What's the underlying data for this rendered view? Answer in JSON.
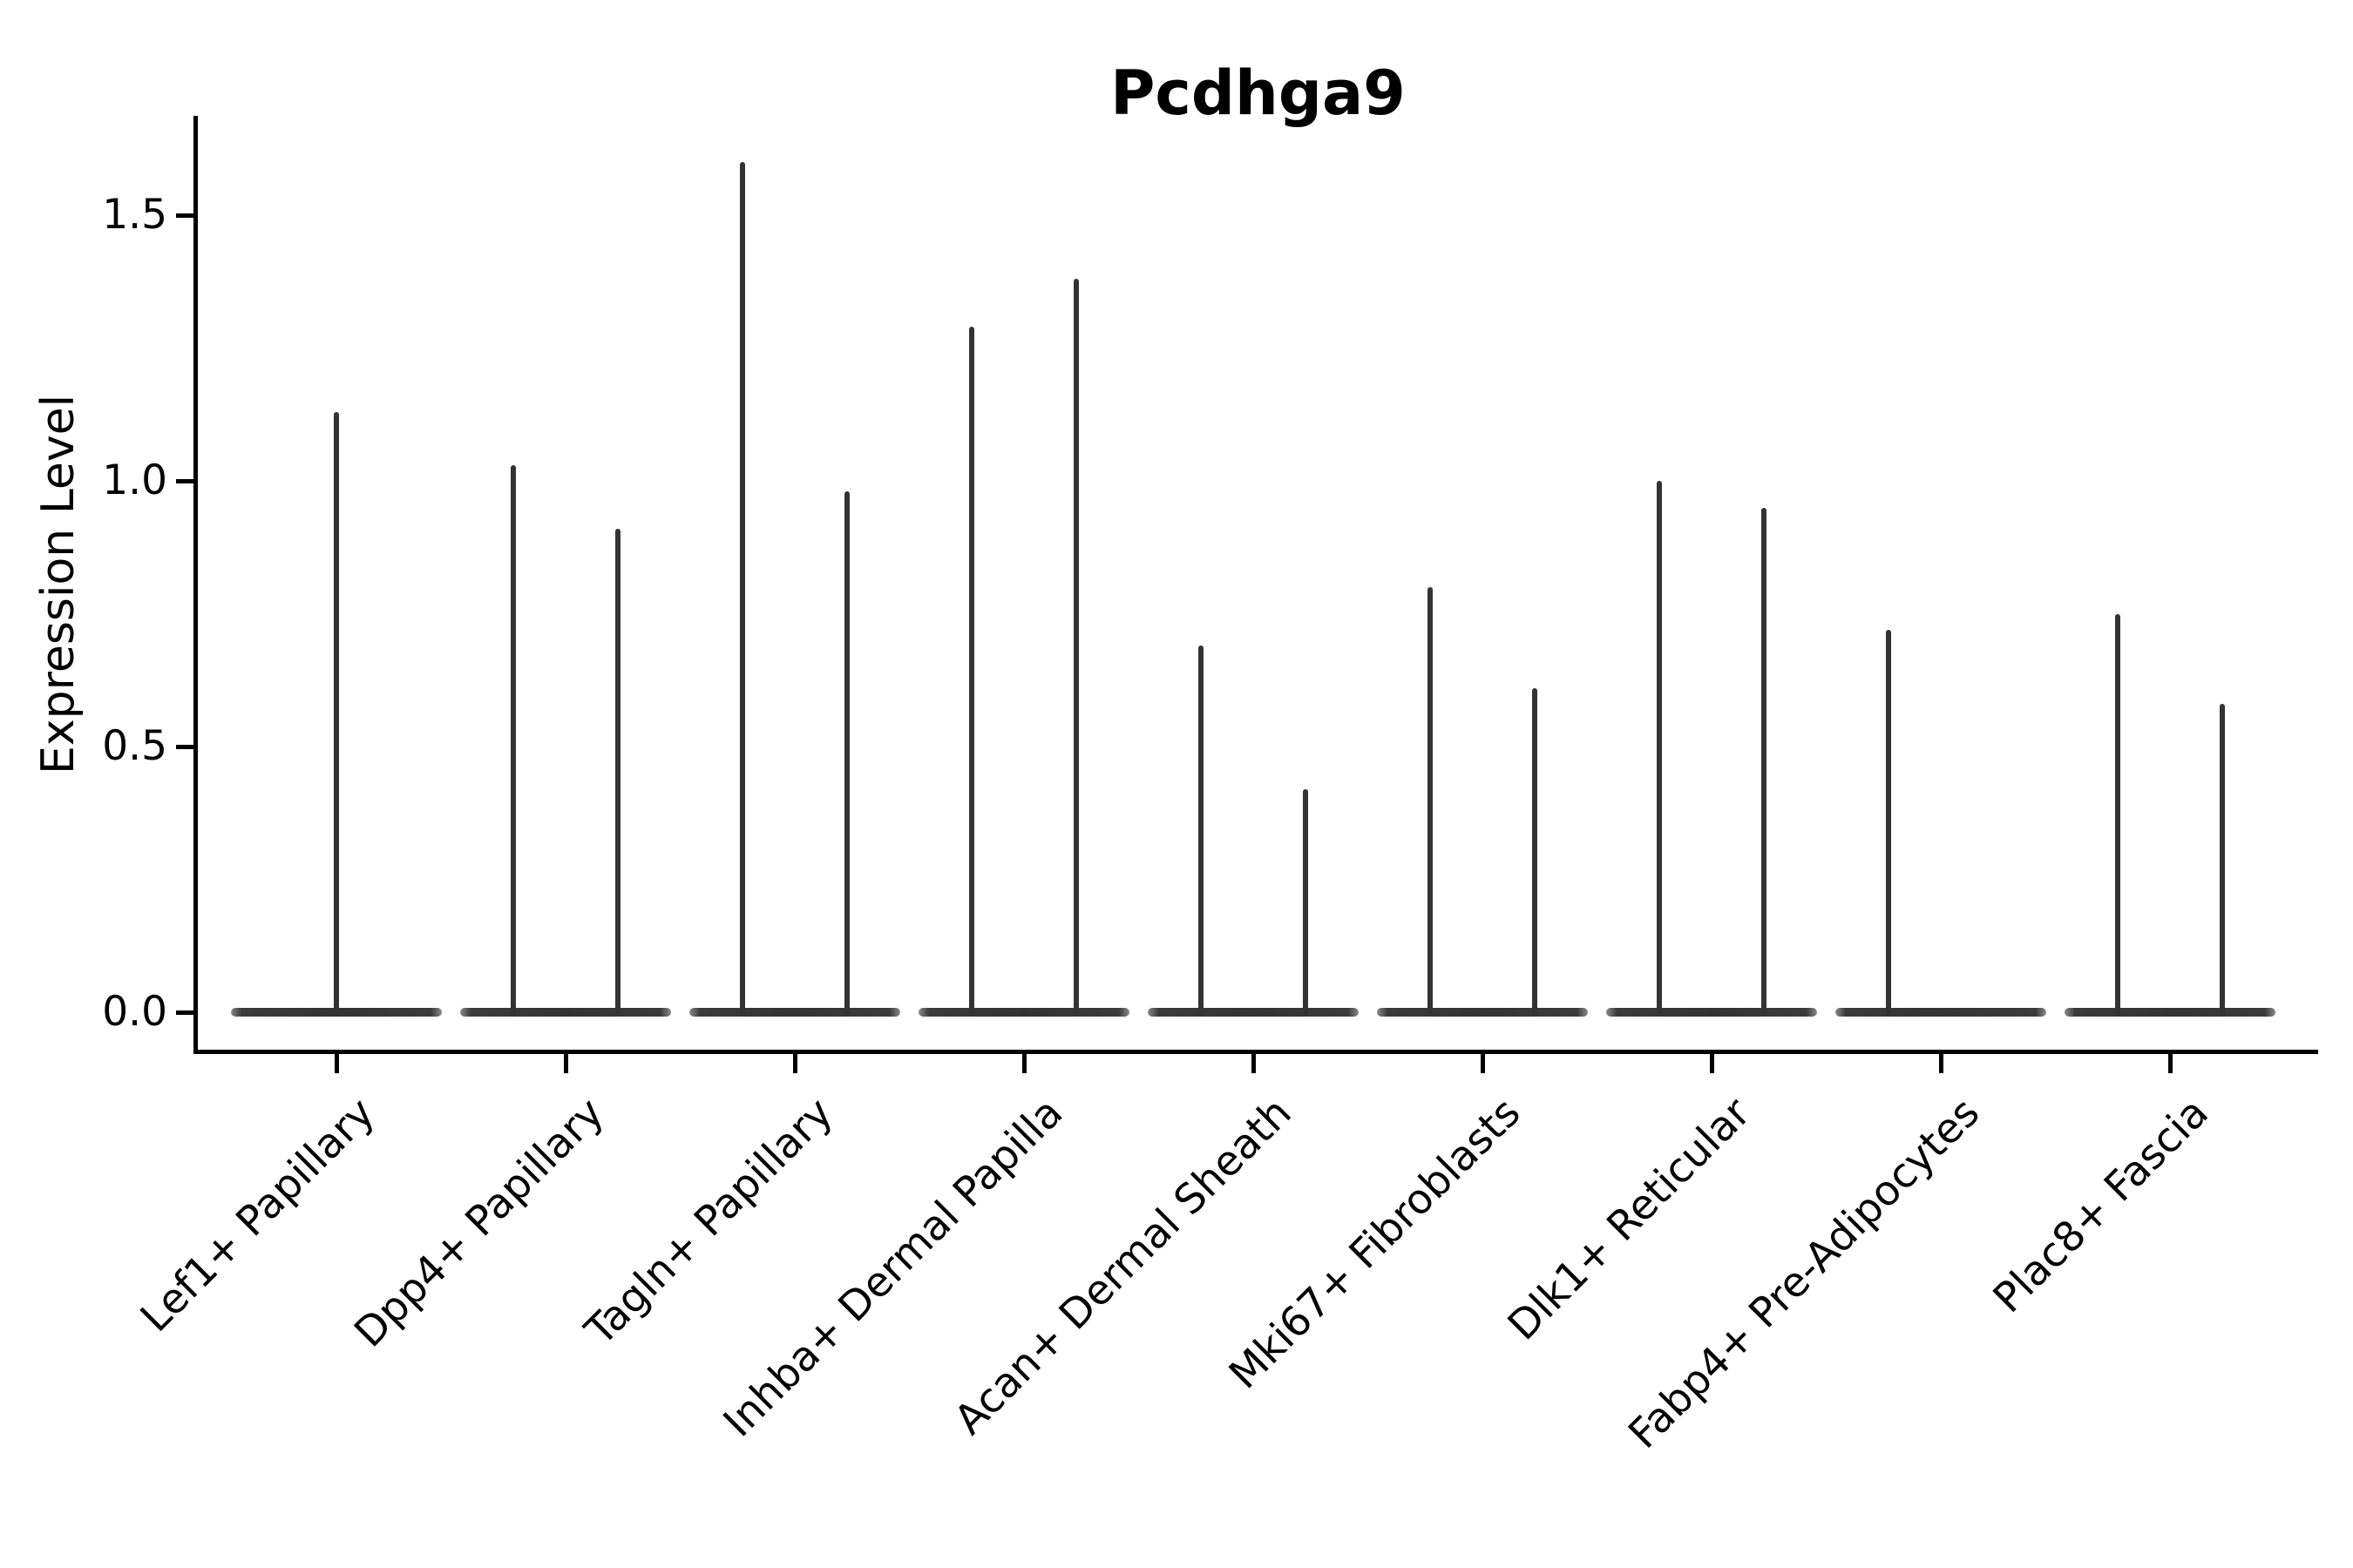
{
  "chart_data": {
    "type": "violin",
    "title": "Pcdhga9",
    "ylabel": "Expression Level",
    "xlabel": "",
    "categories": [
      "Lef1+ Papillary",
      "Dpp4+ Papillary",
      "Tagln+ Papillary",
      "Inhba+ Dermal Papilla",
      "Acan+ Dermal Sheath",
      "Mki67+ Fibroblasts",
      "Dlk1+ Reticular",
      "Fabp4+ Pre-Adipocytes",
      "Plac8+ Fascia"
    ],
    "violins": [
      {
        "label": "Lef1+ Papillary",
        "spikes": [
          {
            "position": "center",
            "value": 1.13
          }
        ]
      },
      {
        "label": "Dpp4+ Papillary",
        "spikes": [
          {
            "position": "left",
            "value": 1.03
          },
          {
            "position": "right",
            "value": 0.91
          }
        ]
      },
      {
        "label": "Tagln+ Papillary",
        "spikes": [
          {
            "position": "left",
            "value": 1.6
          },
          {
            "position": "right",
            "value": 0.98
          }
        ]
      },
      {
        "label": "Inhba+ Dermal Papilla",
        "spikes": [
          {
            "position": "left",
            "value": 1.29
          },
          {
            "position": "right",
            "value": 1.38
          }
        ]
      },
      {
        "label": "Acan+ Dermal Sheath",
        "spikes": [
          {
            "position": "left",
            "value": 0.69
          },
          {
            "position": "right",
            "value": 0.42
          }
        ]
      },
      {
        "label": "Mki67+ Fibroblasts",
        "spikes": [
          {
            "position": "left",
            "value": 0.8
          },
          {
            "position": "right",
            "value": 0.61
          }
        ]
      },
      {
        "label": "Dlk1+ Reticular",
        "spikes": [
          {
            "position": "left",
            "value": 1.0
          },
          {
            "position": "right",
            "value": 0.95
          }
        ]
      },
      {
        "label": "Fabp4+ Pre-Adipocytes",
        "spikes": [
          {
            "position": "left",
            "value": 0.72
          }
        ]
      },
      {
        "label": "Plac8+ Fascia",
        "spikes": [
          {
            "position": "left",
            "value": 0.75
          },
          {
            "position": "right",
            "value": 0.58
          }
        ]
      }
    ],
    "yticks": [
      "0.0",
      "0.5",
      "1.0",
      "1.5"
    ],
    "ytick_values": [
      0.0,
      0.5,
      1.0,
      1.5
    ],
    "ylim": [
      -0.08,
      1.69
    ],
    "legend": "none",
    "grid": false,
    "colors": {
      "violin": "#333333",
      "spine": "#000000",
      "text": "#000000",
      "background": "#ffffff"
    }
  }
}
